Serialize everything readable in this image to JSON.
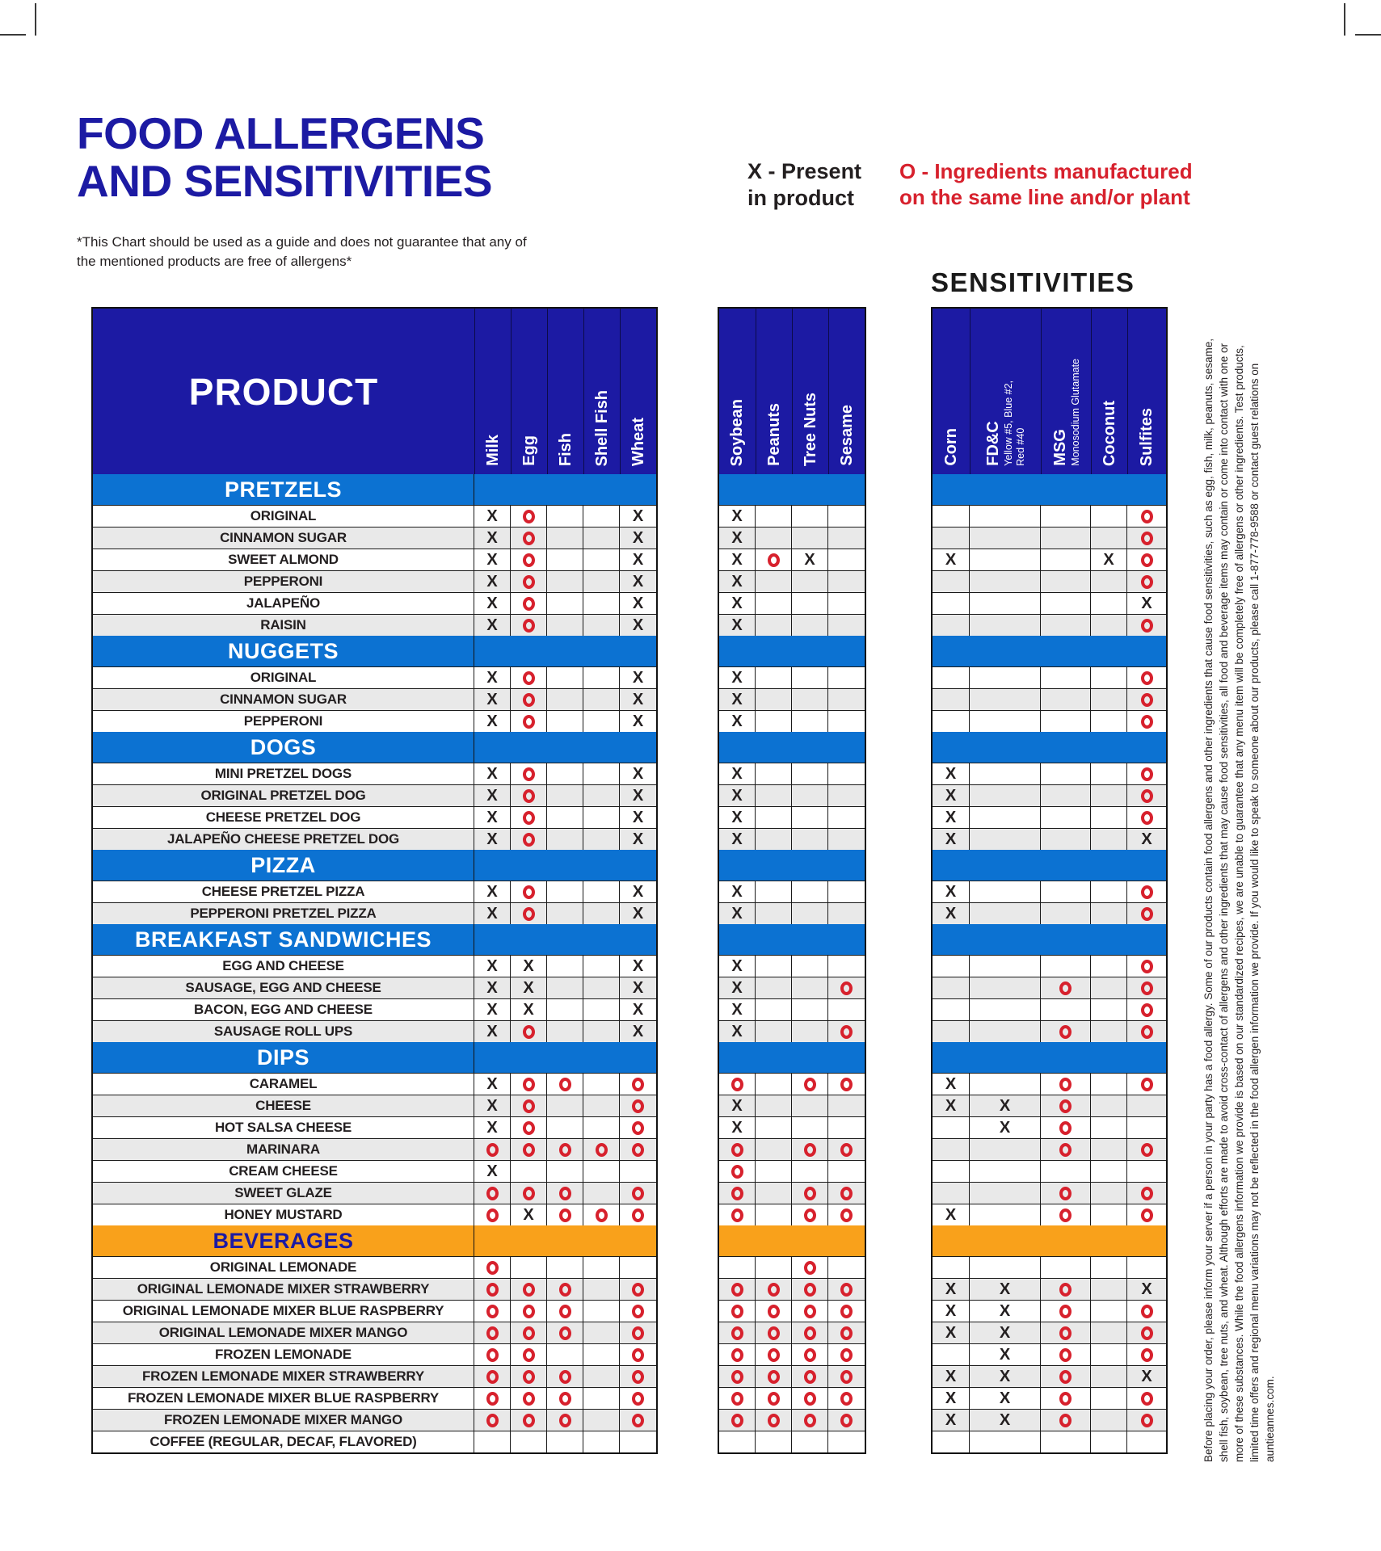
{
  "header": {
    "title_line1": "FOOD ALLERGENS",
    "title_line2": "AND SENSITIVITIES",
    "subtitle": "*This Chart should be used as a guide and does not guarantee that any of the mentioned products are free of allergens*"
  },
  "legend": {
    "x": {
      "line1": "X - Present",
      "line2": "in product"
    },
    "o": {
      "line1": "O - Ingredients manufactured",
      "line2": "on the same line and/or plant"
    }
  },
  "sensitivities_title": "SENSITIVITIES",
  "colors": {
    "deep_blue": "#1C1AA3",
    "section_blue": "#0C72D2",
    "beverage_orange": "#F9A11B",
    "mark_red": "#D7212D",
    "mark_black": "#231F20",
    "stripe_gray": "#E9E9E9"
  },
  "chart_data": {
    "type": "table",
    "product_header": "PRODUCT",
    "column_groups": {
      "allergens_1": {
        "columns": [
          {
            "label": "Milk"
          },
          {
            "label": "Egg"
          },
          {
            "label": "Fish"
          },
          {
            "label": "Shell Fish"
          },
          {
            "label": "Wheat"
          }
        ]
      },
      "allergens_2": {
        "columns": [
          {
            "label": "Soybean"
          },
          {
            "label": "Peanuts"
          },
          {
            "label": "Tree Nuts"
          },
          {
            "label": "Sesame"
          }
        ]
      },
      "sensitivities": {
        "columns": [
          {
            "label": "Corn"
          },
          {
            "label": "FD&C",
            "sub": [
              "Yellow #5, Blue #2,",
              "Red #40"
            ]
          },
          {
            "label": "MSG",
            "sub": [
              "Monosodium Glutamate"
            ]
          },
          {
            "label": "Coconut"
          },
          {
            "label": "Sulfites"
          }
        ]
      }
    },
    "legend_meaning": {
      "X": "Present in product",
      "O": "Ingredients manufactured on the same line and/or plant"
    },
    "sections": [
      {
        "name": "PRETZELS",
        "style": "blue",
        "rows": [
          {
            "label": "ORIGINAL",
            "a1": [
              "X",
              "O",
              "",
              "",
              "X"
            ],
            "a2": [
              "X",
              "",
              "",
              ""
            ],
            "s": [
              "",
              "",
              "",
              "",
              "O"
            ]
          },
          {
            "label": "CINNAMON SUGAR",
            "a1": [
              "X",
              "O",
              "",
              "",
              "X"
            ],
            "a2": [
              "X",
              "",
              "",
              ""
            ],
            "s": [
              "",
              "",
              "",
              "",
              "O"
            ]
          },
          {
            "label": "SWEET ALMOND",
            "a1": [
              "X",
              "O",
              "",
              "",
              "X"
            ],
            "a2": [
              "X",
              "O",
              "X",
              ""
            ],
            "s": [
              "X",
              "",
              "",
              "X",
              "O"
            ]
          },
          {
            "label": "PEPPERONI",
            "a1": [
              "X",
              "O",
              "",
              "",
              "X"
            ],
            "a2": [
              "X",
              "",
              "",
              ""
            ],
            "s": [
              "",
              "",
              "",
              "",
              "O"
            ]
          },
          {
            "label": "JALAPEÑO",
            "a1": [
              "X",
              "O",
              "",
              "",
              "X"
            ],
            "a2": [
              "X",
              "",
              "",
              ""
            ],
            "s": [
              "",
              "",
              "",
              "",
              "X"
            ]
          },
          {
            "label": "RAISIN",
            "a1": [
              "X",
              "O",
              "",
              "",
              "X"
            ],
            "a2": [
              "X",
              "",
              "",
              ""
            ],
            "s": [
              "",
              "",
              "",
              "",
              "O"
            ]
          }
        ]
      },
      {
        "name": "NUGGETS",
        "style": "blue",
        "rows": [
          {
            "label": "ORIGINAL",
            "a1": [
              "X",
              "O",
              "",
              "",
              "X"
            ],
            "a2": [
              "X",
              "",
              "",
              ""
            ],
            "s": [
              "",
              "",
              "",
              "",
              "O"
            ]
          },
          {
            "label": "CINNAMON SUGAR",
            "a1": [
              "X",
              "O",
              "",
              "",
              "X"
            ],
            "a2": [
              "X",
              "",
              "",
              ""
            ],
            "s": [
              "",
              "",
              "",
              "",
              "O"
            ]
          },
          {
            "label": "PEPPERONI",
            "a1": [
              "X",
              "O",
              "",
              "",
              "X"
            ],
            "a2": [
              "X",
              "",
              "",
              ""
            ],
            "s": [
              "",
              "",
              "",
              "",
              "O"
            ]
          }
        ]
      },
      {
        "name": "DOGS",
        "style": "blue",
        "rows": [
          {
            "label": "MINI PRETZEL DOGS",
            "a1": [
              "X",
              "O",
              "",
              "",
              "X"
            ],
            "a2": [
              "X",
              "",
              "",
              ""
            ],
            "s": [
              "X",
              "",
              "",
              "",
              "O"
            ]
          },
          {
            "label": "ORIGINAL PRETZEL DOG",
            "a1": [
              "X",
              "O",
              "",
              "",
              "X"
            ],
            "a2": [
              "X",
              "",
              "",
              ""
            ],
            "s": [
              "X",
              "",
              "",
              "",
              "O"
            ]
          },
          {
            "label": "CHEESE PRETZEL DOG",
            "a1": [
              "X",
              "O",
              "",
              "",
              "X"
            ],
            "a2": [
              "X",
              "",
              "",
              ""
            ],
            "s": [
              "X",
              "",
              "",
              "",
              "O"
            ]
          },
          {
            "label": "JALAPEÑO CHEESE PRETZEL DOG",
            "a1": [
              "X",
              "O",
              "",
              "",
              "X"
            ],
            "a2": [
              "X",
              "",
              "",
              ""
            ],
            "s": [
              "X",
              "",
              "",
              "",
              "X"
            ]
          }
        ]
      },
      {
        "name": "PIZZA",
        "style": "blue",
        "rows": [
          {
            "label": "CHEESE PRETZEL PIZZA",
            "a1": [
              "X",
              "O",
              "",
              "",
              "X"
            ],
            "a2": [
              "X",
              "",
              "",
              ""
            ],
            "s": [
              "X",
              "",
              "",
              "",
              "O"
            ]
          },
          {
            "label": "PEPPERONI PRETZEL PIZZA",
            "a1": [
              "X",
              "O",
              "",
              "",
              "X"
            ],
            "a2": [
              "X",
              "",
              "",
              ""
            ],
            "s": [
              "X",
              "",
              "",
              "",
              "O"
            ]
          }
        ]
      },
      {
        "name": "BREAKFAST SANDWICHES",
        "style": "blue",
        "rows": [
          {
            "label": "EGG AND CHEESE",
            "a1": [
              "X",
              "X",
              "",
              "",
              "X"
            ],
            "a2": [
              "X",
              "",
              "",
              ""
            ],
            "s": [
              "",
              "",
              "",
              "",
              "O"
            ]
          },
          {
            "label": "SAUSAGE, EGG AND CHEESE",
            "a1": [
              "X",
              "X",
              "",
              "",
              "X"
            ],
            "a2": [
              "X",
              "",
              "",
              "O"
            ],
            "s": [
              "",
              "",
              "O",
              "",
              "O"
            ]
          },
          {
            "label": "BACON, EGG AND CHEESE",
            "a1": [
              "X",
              "X",
              "",
              "",
              "X"
            ],
            "a2": [
              "X",
              "",
              "",
              ""
            ],
            "s": [
              "",
              "",
              "",
              "",
              "O"
            ]
          },
          {
            "label": "SAUSAGE ROLL UPS",
            "a1": [
              "X",
              "O",
              "",
              "",
              "X"
            ],
            "a2": [
              "X",
              "",
              "",
              "O"
            ],
            "s": [
              "",
              "",
              "O",
              "",
              "O"
            ]
          }
        ]
      },
      {
        "name": "DIPS",
        "style": "blue",
        "rows": [
          {
            "label": "CARAMEL",
            "a1": [
              "X",
              "O",
              "O",
              "",
              "O"
            ],
            "a2": [
              "O",
              "",
              "O",
              "O"
            ],
            "s": [
              "X",
              "",
              "O",
              "",
              "O"
            ]
          },
          {
            "label": "CHEESE",
            "a1": [
              "X",
              "O",
              "",
              "",
              "O"
            ],
            "a2": [
              "X",
              "",
              "",
              ""
            ],
            "s": [
              "X",
              "X",
              "O",
              "",
              ""
            ]
          },
          {
            "label": "HOT SALSA CHEESE",
            "a1": [
              "X",
              "O",
              "",
              "",
              "O"
            ],
            "a2": [
              "X",
              "",
              "",
              ""
            ],
            "s": [
              "",
              "X",
              "O",
              "",
              ""
            ]
          },
          {
            "label": "MARINARA",
            "a1": [
              "O",
              "O",
              "O",
              "O",
              "O"
            ],
            "a2": [
              "O",
              "",
              "O",
              "O"
            ],
            "s": [
              "",
              "",
              "O",
              "",
              "O"
            ]
          },
          {
            "label": "CREAM CHEESE",
            "a1": [
              "X",
              "",
              "",
              "",
              ""
            ],
            "a2": [
              "O",
              "",
              "",
              ""
            ],
            "s": [
              "",
              "",
              "",
              "",
              ""
            ]
          },
          {
            "label": "SWEET GLAZE",
            "a1": [
              "O",
              "O",
              "O",
              "",
              "O"
            ],
            "a2": [
              "O",
              "",
              "O",
              "O"
            ],
            "s": [
              "",
              "",
              "O",
              "",
              "O"
            ]
          },
          {
            "label": "HONEY MUSTARD",
            "a1": [
              "O",
              "X",
              "O",
              "O",
              "O"
            ],
            "a2": [
              "O",
              "",
              "O",
              "O"
            ],
            "s": [
              "X",
              "",
              "O",
              "",
              "O"
            ]
          }
        ]
      },
      {
        "name": "BEVERAGES",
        "style": "orange",
        "rows": [
          {
            "label": "ORIGINAL LEMONADE",
            "a1": [
              "O",
              "",
              "",
              "",
              ""
            ],
            "a2": [
              "",
              "",
              "O",
              ""
            ],
            "s": [
              "",
              "",
              "",
              "",
              ""
            ]
          },
          {
            "label": "ORIGINAL LEMONADE MIXER STRAWBERRY",
            "a1": [
              "O",
              "O",
              "O",
              "",
              "O"
            ],
            "a2": [
              "O",
              "O",
              "O",
              "O"
            ],
            "s": [
              "X",
              "X",
              "O",
              "",
              "X"
            ]
          },
          {
            "label": "ORIGINAL LEMONADE MIXER BLUE RASPBERRY",
            "a1": [
              "O",
              "O",
              "O",
              "",
              "O"
            ],
            "a2": [
              "O",
              "O",
              "O",
              "O"
            ],
            "s": [
              "X",
              "X",
              "O",
              "",
              "O"
            ]
          },
          {
            "label": "ORIGINAL LEMONADE MIXER MANGO",
            "a1": [
              "O",
              "O",
              "O",
              "",
              "O"
            ],
            "a2": [
              "O",
              "O",
              "O",
              "O"
            ],
            "s": [
              "X",
              "X",
              "O",
              "",
              "O"
            ]
          },
          {
            "label": "FROZEN LEMONADE",
            "a1": [
              "O",
              "O",
              "",
              "",
              "O"
            ],
            "a2": [
              "O",
              "O",
              "O",
              "O"
            ],
            "s": [
              "",
              "X",
              "O",
              "",
              "O"
            ]
          },
          {
            "label": "FROZEN LEMONADE MIXER STRAWBERRY",
            "a1": [
              "O",
              "O",
              "O",
              "",
              "O"
            ],
            "a2": [
              "O",
              "O",
              "O",
              "O"
            ],
            "s": [
              "X",
              "X",
              "O",
              "",
              "X"
            ]
          },
          {
            "label": "FROZEN LEMONADE MIXER BLUE RASPBERRY",
            "a1": [
              "O",
              "O",
              "O",
              "",
              "O"
            ],
            "a2": [
              "O",
              "O",
              "O",
              "O"
            ],
            "s": [
              "X",
              "X",
              "O",
              "",
              "O"
            ]
          },
          {
            "label": "FROZEN LEMONADE MIXER MANGO",
            "a1": [
              "O",
              "O",
              "O",
              "",
              "O"
            ],
            "a2": [
              "O",
              "O",
              "O",
              "O"
            ],
            "s": [
              "X",
              "X",
              "O",
              "",
              "O"
            ]
          },
          {
            "label": "COFFEE (REGULAR, DECAF, FLAVORED)",
            "a1": [
              "",
              "",
              "",
              "",
              ""
            ],
            "a2": [
              "",
              "",
              "",
              ""
            ],
            "s": [
              "",
              "",
              "",
              "",
              ""
            ]
          }
        ]
      }
    ]
  },
  "disclaimer": "Before placing your order, please inform your server if a person in your party has a food allergy. Some of our products contain food allergens and other ingredients that cause food sensitivities, such as egg, fish, milk, peanuts, sesame, shell fish, soybean, tree nuts, and wheat. Although efforts are made to avoid cross-contact of allergens and other ingredients that may cause food sensitivities, all food and beverage items may contain or come into contact with one or more of these substances. While the food allergens information we provide is based on our standardized recipes, we are unable to guarantee that any menu item will be completely free of allergens or other ingredients. Test products, limited time offers and regional menu variations may not be reflected in the food allergen information we provide. If you would like to speak to someone about our products, please call 1-877-778-9588 or contact guest relations on auntieannes.com."
}
